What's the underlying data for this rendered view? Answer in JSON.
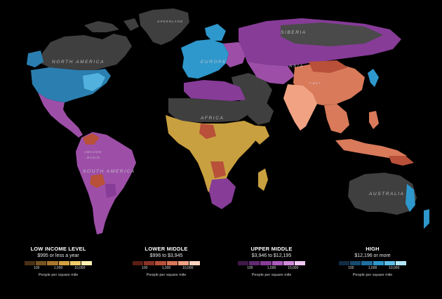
{
  "map": {
    "region_labels": {
      "greenland": "GREENLAND",
      "north_america": "NORTH AMERICA",
      "south_america": "SOUTH AMERICA",
      "europe": "EUROPE",
      "asia": "ASIA",
      "siberia": "SIBERIA",
      "africa": "AFRICA",
      "australia": "AUSTRALIA",
      "amazon": "AMAZON",
      "basin": "BASIN",
      "tibet": "TIBET"
    },
    "colors": {
      "no_data": "#3f3f3f",
      "low": "#c9a040",
      "lower_middle": "#d97a5a",
      "upper_middle": "#9d4fa8",
      "high": "#33a6d8",
      "background": "#000000"
    }
  },
  "legend": [
    {
      "title": "LOW INCOME LEVEL",
      "range": "$995 or less a year",
      "ticks": [
        "100",
        "1,000",
        "10,000"
      ],
      "unit": "People per square mile",
      "swatches": [
        "#4a3014",
        "#7a5420",
        "#a9782c",
        "#d3a040",
        "#f0cc6a",
        "#fff0b0"
      ]
    },
    {
      "title": "LOWER MIDDLE",
      "range": "$996 to $3,945",
      "ticks": [
        "100",
        "1,000",
        "10,000"
      ],
      "unit": "People per square mile",
      "swatches": [
        "#5a1e14",
        "#8a3424",
        "#b8503a",
        "#d9765a",
        "#f0a283",
        "#ffd3be"
      ]
    },
    {
      "title": "UPPER MIDDLE",
      "range": "$3,946 to $12,195",
      "ticks": [
        "100",
        "1,000",
        "10,000"
      ],
      "unit": "People per square mile",
      "swatches": [
        "#3e1a48",
        "#622a72",
        "#873c98",
        "#ab5cbc",
        "#cf8ad9",
        "#f1c6f2"
      ]
    },
    {
      "title": "HIGH",
      "range": "$12,196 or more",
      "ticks": [
        "100",
        "1,000",
        "10,000"
      ],
      "unit": "People per square mile",
      "swatches": [
        "#0f2c44",
        "#164a6e",
        "#1f6fa0",
        "#2e97cc",
        "#5dbfe8",
        "#b2e6fb"
      ]
    }
  ]
}
